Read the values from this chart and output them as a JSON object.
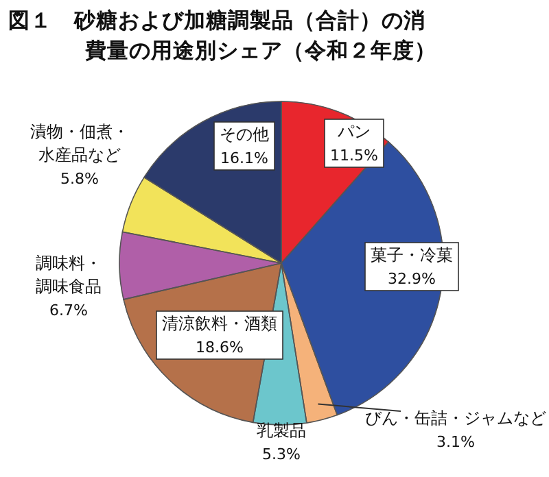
{
  "chart_data": {
    "type": "pie",
    "title": "図１　砂糖および加糖調製品（合計）の消費量の用途別シェア（令和２年度）",
    "categories": [
      "パン",
      "菓子・冷菓",
      "びん・缶詰・ジャムなど",
      "乳製品",
      "清涼飲料・酒類",
      "調味料・調味食品",
      "漬物・佃煮・水産品など",
      "その他"
    ],
    "values": [
      11.5,
      32.9,
      3.1,
      5.3,
      18.6,
      6.7,
      5.8,
      16.1
    ],
    "value_labels": [
      "11.5%",
      "32.9%",
      "3.1%",
      "5.3%",
      "18.6%",
      "6.7%",
      "5.8%",
      "16.1%"
    ],
    "colors": [
      "#e8262d",
      "#2e4fa0",
      "#f5b27a",
      "#6cc6cc",
      "#b5714a",
      "#b05fa8",
      "#f2e35a",
      "#2b3a6b"
    ]
  }
}
